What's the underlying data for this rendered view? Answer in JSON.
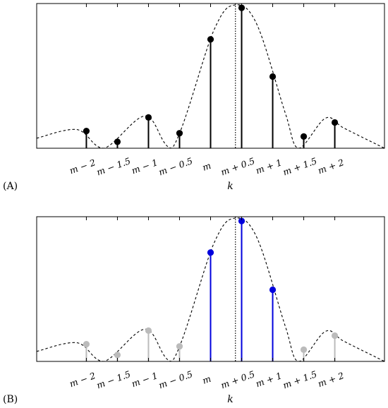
{
  "chart_data": [
    {
      "type": "scatter",
      "panel_label": "(A)",
      "xlabel": "k",
      "ylabel": "",
      "title": "",
      "grid": false,
      "xlim": [
        -2.8,
        2.8
      ],
      "ylim": [
        0,
        1.0
      ],
      "tick_positions": [
        -2,
        -1.5,
        -1,
        -0.5,
        0,
        0.5,
        1,
        1.5,
        2
      ],
      "tick_labels": [
        "m − 2",
        "m − 1.5",
        "m − 1",
        "m − 0.5",
        "m",
        "m + 0.5",
        "m + 1",
        "m + 1.5",
        "m + 2"
      ],
      "stems": {
        "x": [
          -2,
          -1.5,
          -1,
          -0.5,
          0,
          0.5,
          1,
          1.5,
          2
        ],
        "y": [
          0.12,
          0.045,
          0.215,
          0.105,
          0.76,
          0.98,
          0.5,
          0.082,
          0.18
        ],
        "color": "#000000"
      },
      "envelope": {
        "style": "dashed",
        "color": "#000000",
        "peak_x": 0.4
      },
      "vline": {
        "x": 0.4,
        "style": "dotted",
        "color": "#000000"
      }
    },
    {
      "type": "scatter",
      "panel_label": "(B)",
      "xlabel": "k",
      "ylabel": "",
      "title": "",
      "grid": false,
      "xlim": [
        -2.8,
        2.8
      ],
      "ylim": [
        0,
        1.0
      ],
      "tick_positions": [
        -2,
        -1.5,
        -1,
        -0.5,
        0,
        0.5,
        1,
        1.5,
        2
      ],
      "tick_labels": [
        "m − 2",
        "m − 1.5",
        "m − 1",
        "m − 0.5",
        "m",
        "m + 0.5",
        "m + 1",
        "m + 1.5",
        "m + 2"
      ],
      "stems": {
        "x": [
          -2,
          -1.5,
          -1,
          -0.5,
          0,
          0.5,
          1,
          1.5,
          2
        ],
        "y": [
          0.12,
          0.045,
          0.215,
          0.105,
          0.76,
          0.98,
          0.5,
          0.082,
          0.18
        ],
        "highlighted_x": [
          0,
          0.5,
          1
        ],
        "highlight_color": "#0000dd",
        "muted_color": "#bbbbbb"
      },
      "envelope": {
        "style": "dashed",
        "color": "#000000",
        "peak_x": 0.4
      },
      "vline": {
        "x": 0.4,
        "style": "dotted",
        "color": "#000000"
      }
    }
  ]
}
